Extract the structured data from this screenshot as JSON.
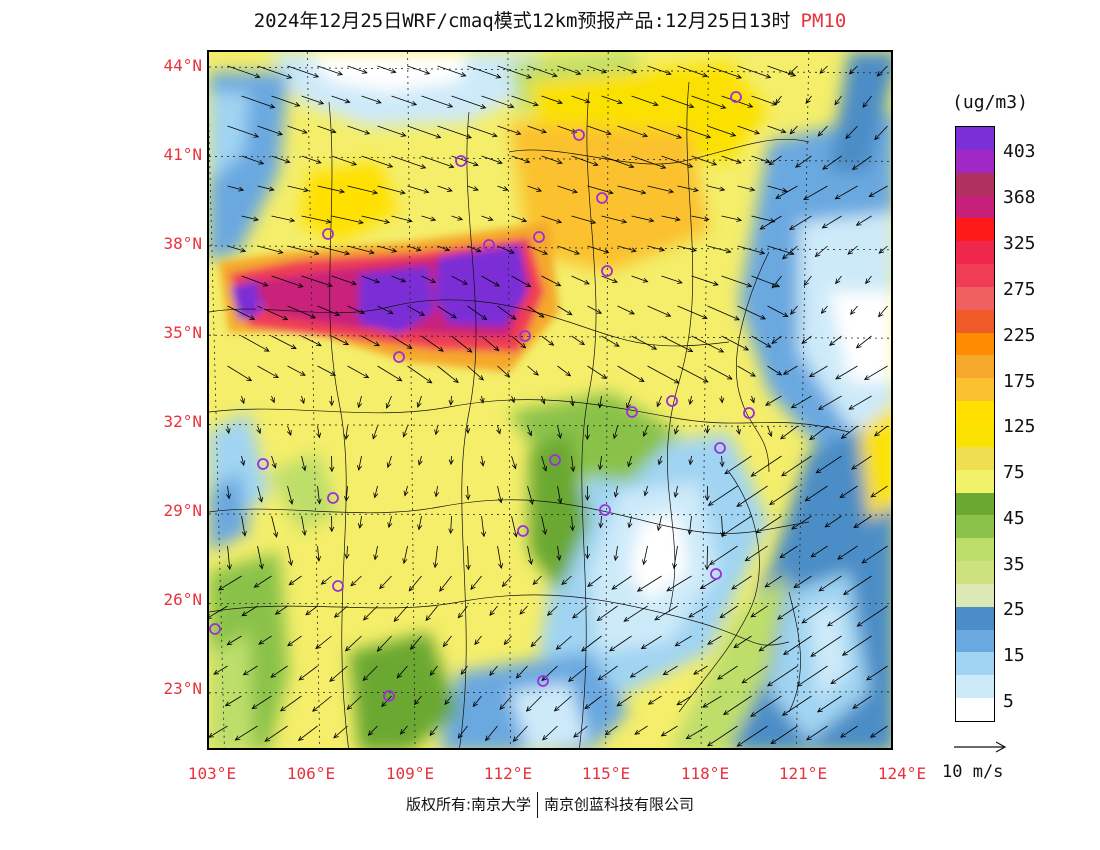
{
  "title": {
    "main": "2024年12月25日WRF/cmaq模式12km预报产品:12月25日13时",
    "pollutant": "PM10",
    "pollutant_color": "#e8323c"
  },
  "map": {
    "latitude_labels": [
      "44°N",
      "41°N",
      "38°N",
      "35°N",
      "32°N",
      "29°N",
      "26°N",
      "23°N"
    ],
    "longitude_labels": [
      "103°E",
      "106°E",
      "109°E",
      "112°E",
      "115°E",
      "118°E",
      "121°E",
      "124°E"
    ],
    "station_marker_color": "#9b30d9",
    "wind_vector_color": "#000000"
  },
  "legend": {
    "unit": "(ug/m3)",
    "levels": [
      "403",
      "368",
      "325",
      "275",
      "225",
      "175",
      "125",
      "75",
      "45",
      "35",
      "25",
      "15",
      "5"
    ],
    "colors": [
      "#7b2fd6",
      "#a028c4",
      "#b03060",
      "#c8207a",
      "#ff1a1a",
      "#f0274d",
      "#f03c55",
      "#f06060",
      "#f05a28",
      "#ff8c00",
      "#f5a82a",
      "#fbc12e",
      "#ffe000",
      "#fbe100",
      "#eede50",
      "#f2f26a",
      "#6aa832",
      "#8ac24a",
      "#bede6a",
      "#cde27e",
      "#dce9b6",
      "#4b8dc6",
      "#6aa8e0",
      "#a0d4f2",
      "#cdeaf9",
      "#ffffff"
    ],
    "reference_vector": "10 m/s"
  },
  "copyright": {
    "left": "版权所有:南京大学",
    "right": "南京创蓝科技有限公司"
  }
}
